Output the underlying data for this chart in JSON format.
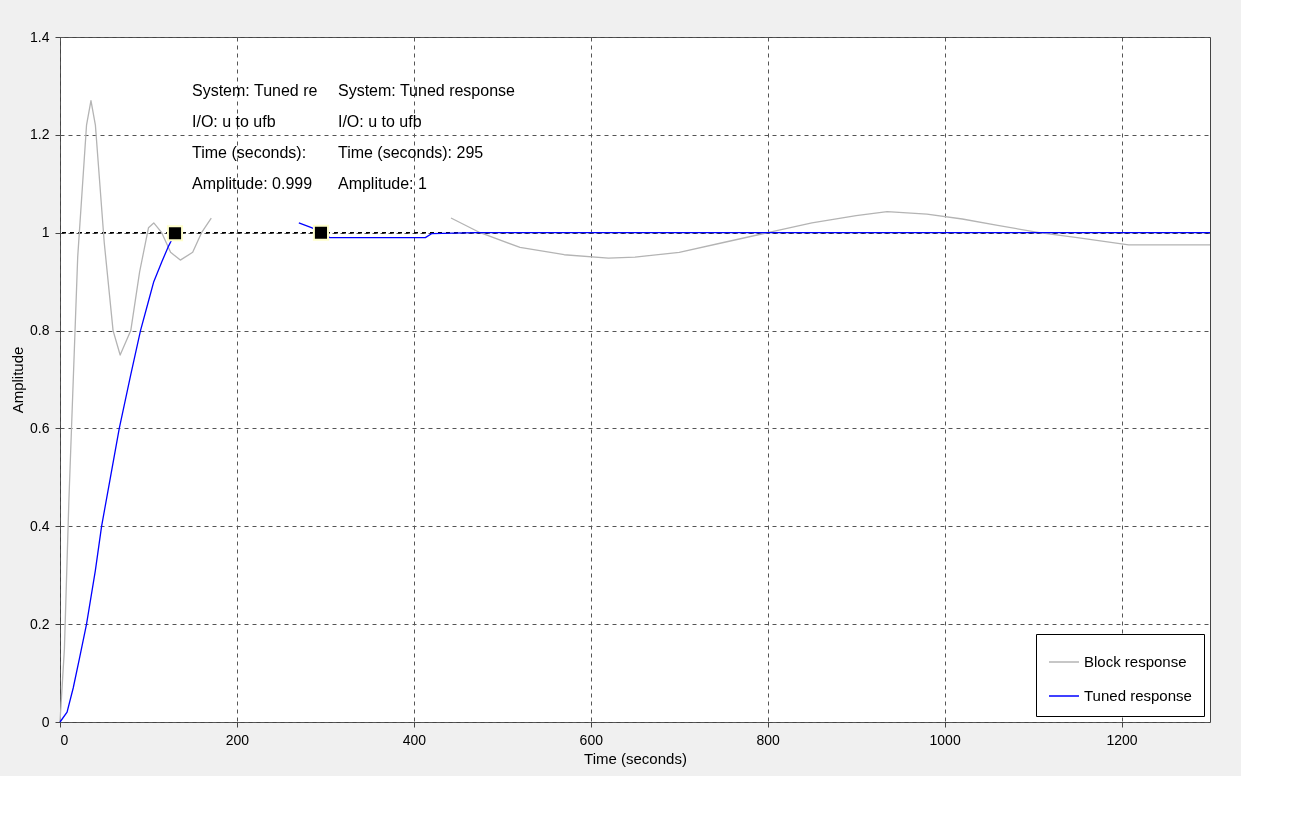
{
  "chart_data": {
    "type": "line",
    "xlabel": "Time (seconds)",
    "ylabel": "Amplitude",
    "xlim": [
      0,
      1300
    ],
    "ylim": [
      0,
      1.4
    ],
    "xticks": [
      0,
      200,
      400,
      600,
      800,
      1000,
      1200
    ],
    "yticks": [
      0,
      0.2,
      0.4,
      0.6,
      0.8,
      1,
      1.2,
      1.4
    ],
    "grid": true,
    "legend": "bottom right",
    "line_style": "solid",
    "marker": "none",
    "series": [
      {
        "name": "Block response",
        "color": "#b4b4b4",
        "x": [
          0,
          5,
          10,
          20,
          30,
          35,
          40,
          50,
          60,
          68,
          80,
          90,
          100,
          106,
          115,
          125,
          136,
          150,
          160,
          171,
          200,
          300,
          442,
          475,
          520,
          570,
          620,
          650,
          700,
          750,
          800,
          850,
          900,
          935,
          980,
          1020,
          1060,
          1107,
          1150,
          1208,
          1250,
          1300
        ],
        "values": [
          0,
          0.15,
          0.45,
          0.95,
          1.22,
          1.27,
          1.22,
          0.98,
          0.8,
          0.75,
          0.8,
          0.92,
          1.01,
          1.02,
          1.0,
          0.96,
          0.944,
          0.96,
          1.0,
          1.03,
          null,
          null,
          1.03,
          1.0,
          0.97,
          0.955,
          0.948,
          0.95,
          0.96,
          0.98,
          1.0,
          1.02,
          1.035,
          1.043,
          1.038,
          1.028,
          1.015,
          1.0,
          0.99,
          0.975,
          0.975,
          0.975
        ]
      },
      {
        "name": "Tuned response",
        "color": "#0000ff",
        "x": [
          0,
          8,
          15,
          22,
          30,
          40,
          47,
          57,
          67,
          80,
          91,
          100,
          106,
          115,
          122,
          130,
          200,
          270,
          285,
          295,
          305,
          350,
          413,
          420,
          470,
          600,
          800,
          1000,
          1200,
          1300
        ],
        "values": [
          0,
          0.02,
          0.07,
          0.13,
          0.2,
          0.31,
          0.4,
          0.5,
          0.6,
          0.71,
          0.8,
          0.86,
          0.9,
          0.94,
          0.97,
          0.999,
          null,
          1.02,
          1.01,
          1.0,
          0.99,
          0.99,
          0.99,
          0.998,
          1.0,
          1.0,
          1.0,
          1.0,
          1.0,
          1.0
        ]
      }
    ],
    "ref_lines": [
      {
        "axis": "y",
        "value": 1,
        "color": "#000000",
        "line_style": "dashed"
      }
    ],
    "annotations": [
      {
        "text": "System: Tuned re\nI/O: u to ufb\nTime (seconds):\nAmplitude: 0.999",
        "x": 130,
        "y": 0.999
      },
      {
        "text": "System: Tuned response\nI/O: u to ufb\nTime (seconds): 295\nAmplitude: 1",
        "x": 295,
        "y": 1
      }
    ]
  }
}
